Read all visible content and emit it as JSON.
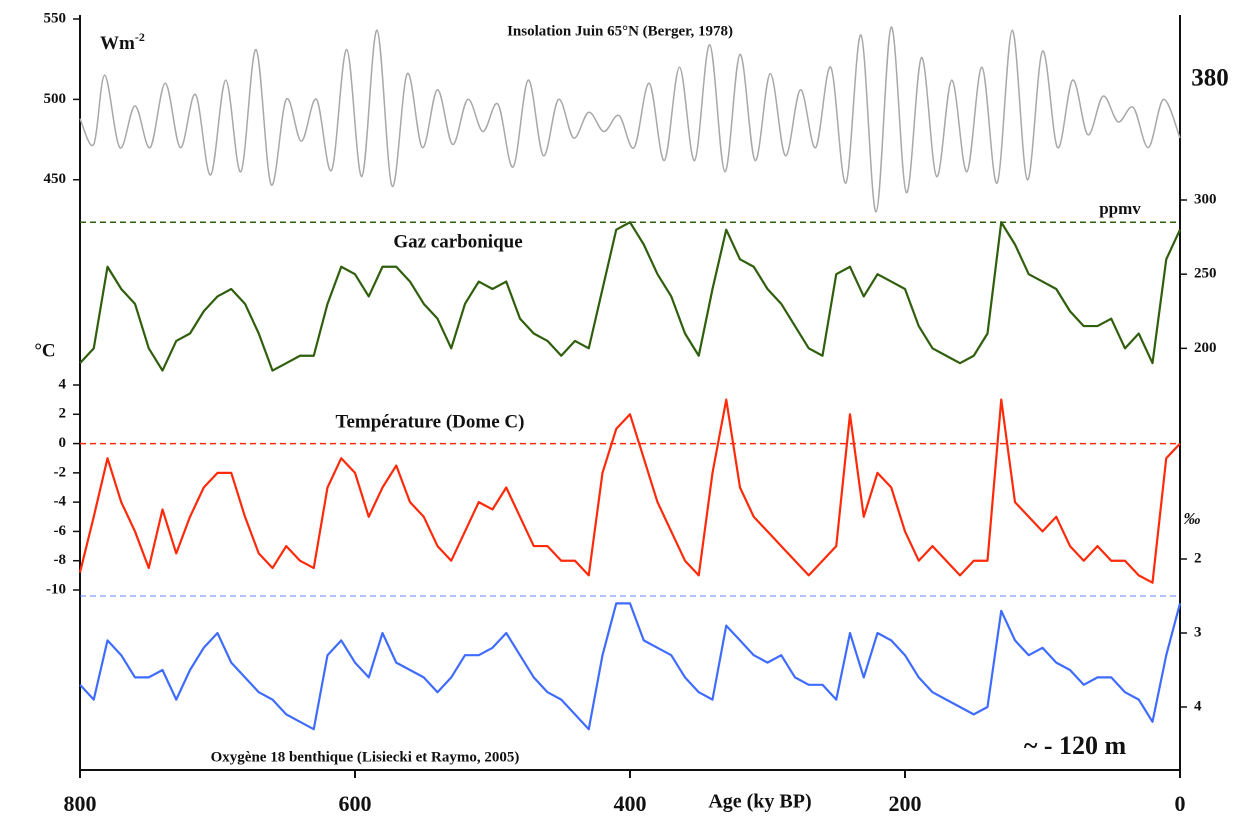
{
  "chart_data": [
    {
      "type": "line",
      "title": "Insolation Juin 65°N (Berger, 1978)",
      "y_unit": {
        "base": "Wm",
        "exponent": "-2"
      },
      "y_axis_side": "left",
      "smooth": true,
      "xlim": [
        800,
        0
      ],
      "ylim": [
        420,
        550
      ],
      "yticks": [
        450,
        500,
        550
      ],
      "series": [
        {
          "name": "Insolation",
          "color": "#a8a8a8",
          "x": [
            800,
            790,
            782,
            771,
            760,
            749,
            738,
            727,
            716,
            705,
            694,
            683,
            672,
            661,
            650,
            639,
            628,
            617,
            606,
            595,
            584,
            573,
            562,
            551,
            540,
            529,
            518,
            507,
            496,
            485,
            474,
            463,
            452,
            441,
            430,
            419,
            408,
            397,
            386,
            375,
            364,
            353,
            342,
            331,
            320,
            309,
            298,
            287,
            276,
            265,
            254,
            243,
            232,
            221,
            210,
            199,
            188,
            177,
            166,
            155,
            144,
            133,
            122,
            111,
            100,
            89,
            78,
            67,
            56,
            45,
            34,
            23,
            12,
            0
          ],
          "values": [
            488,
            472,
            515,
            470,
            496,
            470,
            510,
            470,
            503,
            453,
            512,
            455,
            531,
            447,
            500,
            474,
            500,
            456,
            531,
            452,
            543,
            446,
            516,
            470,
            506,
            472,
            500,
            480,
            497,
            458,
            512,
            465,
            500,
            476,
            492,
            480,
            490,
            470,
            510,
            462,
            520,
            462,
            534,
            455,
            528,
            462,
            516,
            465,
            506,
            470,
            520,
            448,
            540,
            430,
            545,
            442,
            526,
            452,
            512,
            455,
            520,
            448,
            543,
            450,
            530,
            470,
            512,
            478,
            502,
            486,
            495,
            470,
            500,
            476
          ]
        }
      ]
    },
    {
      "type": "line",
      "title": "Gaz carbonique",
      "y_unit": "ppmv",
      "y_axis_side": "right",
      "annotation": {
        "text": "380",
        "color": "#b3221c"
      },
      "xlim": [
        800,
        0
      ],
      "ylim": [
        180,
        300
      ],
      "yticks": [
        200,
        250,
        300
      ],
      "reference_line": 285,
      "series": [
        {
          "name": "CO2",
          "color": "#2f5f0c",
          "x": [
            800,
            790,
            780,
            770,
            760,
            750,
            740,
            730,
            720,
            710,
            700,
            690,
            680,
            670,
            660,
            650,
            640,
            630,
            620,
            610,
            600,
            590,
            580,
            570,
            560,
            550,
            540,
            530,
            520,
            510,
            500,
            490,
            480,
            470,
            460,
            450,
            440,
            430,
            420,
            410,
            400,
            390,
            380,
            370,
            360,
            350,
            340,
            330,
            320,
            310,
            300,
            290,
            280,
            270,
            260,
            250,
            240,
            230,
            220,
            210,
            200,
            190,
            180,
            170,
            160,
            150,
            140,
            130,
            120,
            110,
            100,
            90,
            80,
            70,
            60,
            50,
            40,
            30,
            20,
            10,
            0
          ],
          "values": [
            190,
            200,
            255,
            240,
            230,
            200,
            185,
            205,
            210,
            225,
            235,
            240,
            230,
            210,
            185,
            190,
            195,
            195,
            230,
            255,
            250,
            235,
            255,
            255,
            245,
            230,
            220,
            200,
            230,
            245,
            240,
            245,
            220,
            210,
            205,
            195,
            205,
            200,
            240,
            280,
            285,
            270,
            250,
            235,
            210,
            195,
            240,
            280,
            260,
            255,
            240,
            230,
            215,
            200,
            195,
            250,
            255,
            235,
            250,
            245,
            240,
            215,
            200,
            195,
            190,
            195,
            210,
            285,
            270,
            250,
            245,
            240,
            225,
            215,
            215,
            220,
            200,
            210,
            190,
            260,
            280
          ]
        }
      ]
    },
    {
      "type": "line",
      "title": "Température (Dome C)",
      "y_unit": "°C",
      "y_axis_side": "left",
      "xlim": [
        800,
        0
      ],
      "ylim": [
        -10,
        4
      ],
      "yticks": [
        -10,
        -8,
        -6,
        -4,
        -2,
        0,
        2,
        4
      ],
      "reference_line": 0,
      "series": [
        {
          "name": "Température",
          "color": "#ff2a0a",
          "x": [
            800,
            790,
            780,
            770,
            760,
            750,
            740,
            730,
            720,
            710,
            700,
            690,
            680,
            670,
            660,
            650,
            640,
            630,
            620,
            610,
            600,
            590,
            580,
            570,
            560,
            550,
            540,
            530,
            520,
            510,
            500,
            490,
            480,
            470,
            460,
            450,
            440,
            430,
            420,
            410,
            400,
            390,
            380,
            370,
            360,
            350,
            340,
            330,
            320,
            310,
            300,
            290,
            280,
            270,
            260,
            250,
            240,
            230,
            220,
            210,
            200,
            190,
            180,
            170,
            160,
            150,
            140,
            130,
            120,
            110,
            100,
            90,
            80,
            70,
            60,
            50,
            40,
            30,
            20,
            10,
            0
          ],
          "values": [
            -8.8,
            -5,
            -1,
            -4,
            -6,
            -8.5,
            -4.5,
            -7.5,
            -5,
            -3,
            -2,
            -2,
            -5,
            -7.5,
            -8.5,
            -7,
            -8,
            -8.5,
            -3,
            -1,
            -2,
            -5,
            -3,
            -1.5,
            -4,
            -5,
            -7,
            -8,
            -6,
            -4,
            -4.5,
            -3,
            -5,
            -7,
            -7,
            -8,
            -8,
            -9,
            -2,
            1,
            2,
            -1,
            -4,
            -6,
            -8,
            -9,
            -2,
            3,
            -3,
            -5,
            -6,
            -7,
            -8,
            -9,
            -8,
            -7,
            2,
            -5,
            -2,
            -3,
            -6,
            -8,
            -7,
            -8,
            -9,
            -8,
            -8,
            3,
            -4,
            -5,
            -6,
            -5,
            -7,
            -8,
            -7,
            -8,
            -8,
            -9,
            -9.5,
            -1,
            0
          ]
        }
      ]
    },
    {
      "type": "line",
      "title": "Oxygène 18 benthique (Lisiecki et Raymo, 2005)",
      "y_unit": "‰",
      "y_axis_side": "right",
      "y_inverted": true,
      "annotation": {
        "text": "~ - 120 m",
        "color": "#1f35c4"
      },
      "xlim": [
        800,
        0
      ],
      "ylim": [
        2,
        4.5
      ],
      "yticks": [
        2,
        3,
        4
      ],
      "reference_line": 2.5,
      "xticks": [
        800,
        600,
        400,
        200,
        0
      ],
      "xlabel": "Age (ky BP)",
      "series": [
        {
          "name": "Oxygène 18",
          "color": "#3f6cff",
          "x": [
            800,
            790,
            780,
            770,
            760,
            750,
            740,
            730,
            720,
            710,
            700,
            690,
            680,
            670,
            660,
            650,
            640,
            630,
            620,
            610,
            600,
            590,
            580,
            570,
            560,
            550,
            540,
            530,
            520,
            510,
            500,
            490,
            480,
            470,
            460,
            450,
            440,
            430,
            420,
            410,
            400,
            390,
            380,
            370,
            360,
            350,
            340,
            330,
            320,
            310,
            300,
            290,
            280,
            270,
            260,
            250,
            240,
            230,
            220,
            210,
            200,
            190,
            180,
            170,
            160,
            150,
            140,
            130,
            120,
            110,
            100,
            90,
            80,
            70,
            60,
            50,
            40,
            30,
            20,
            10,
            0
          ],
          "values": [
            3.7,
            3.9,
            3.1,
            3.3,
            3.6,
            3.6,
            3.5,
            3.9,
            3.5,
            3.2,
            3.0,
            3.4,
            3.6,
            3.8,
            3.9,
            4.1,
            4.2,
            4.3,
            3.3,
            3.1,
            3.4,
            3.6,
            3.0,
            3.4,
            3.5,
            3.6,
            3.8,
            3.6,
            3.3,
            3.3,
            3.2,
            3.0,
            3.3,
            3.6,
            3.8,
            3.9,
            4.1,
            4.3,
            3.3,
            2.6,
            2.6,
            3.1,
            3.2,
            3.3,
            3.6,
            3.8,
            3.9,
            2.9,
            3.1,
            3.3,
            3.4,
            3.3,
            3.6,
            3.7,
            3.7,
            3.9,
            3.0,
            3.6,
            3.0,
            3.1,
            3.3,
            3.6,
            3.8,
            3.9,
            4.0,
            4.1,
            4.0,
            2.7,
            3.1,
            3.3,
            3.2,
            3.4,
            3.5,
            3.7,
            3.6,
            3.6,
            3.8,
            3.9,
            4.2,
            3.3,
            2.6
          ]
        }
      ]
    }
  ]
}
